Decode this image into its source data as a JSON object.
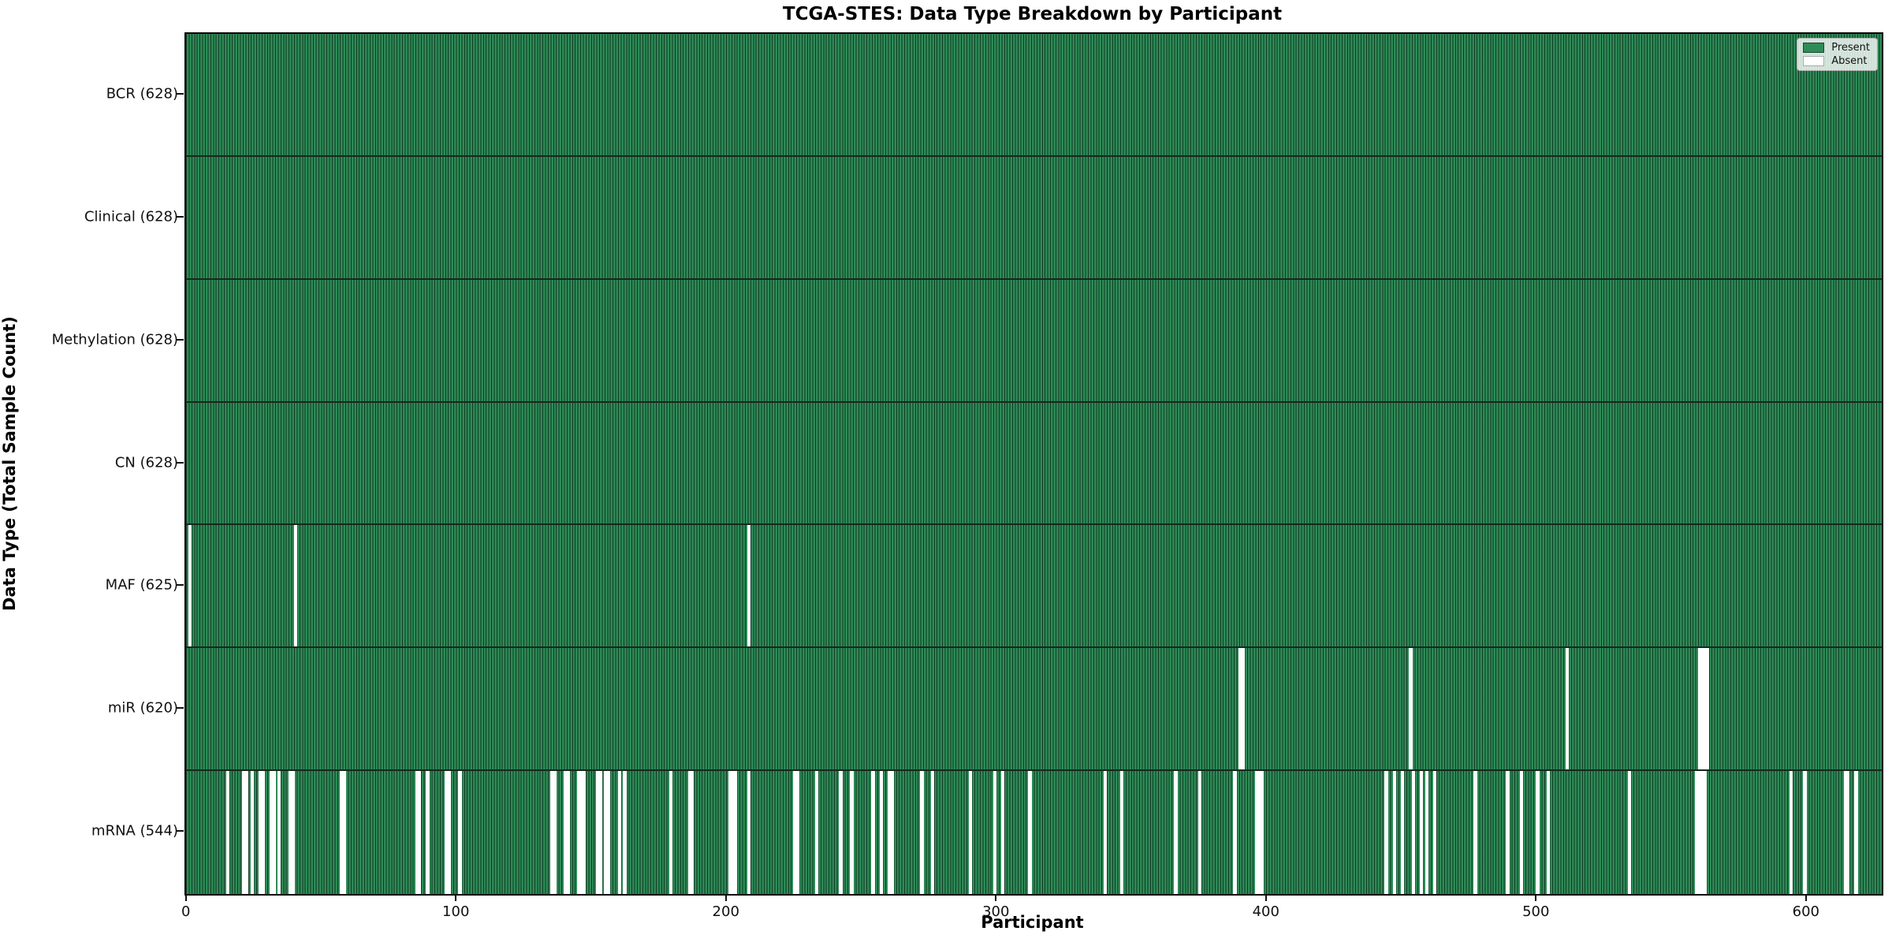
{
  "chart_data": {
    "type": "heatmap",
    "title": "TCGA-STES: Data Type Breakdown by Participant",
    "xlabel": "Participant",
    "ylabel": "Data Type (Total Sample Count)",
    "n_participants": 628,
    "x_ticks": [
      0,
      100,
      200,
      300,
      400,
      500,
      600
    ],
    "grid": false,
    "legend": {
      "position": "upper-right",
      "entries": [
        {
          "label": "Present",
          "color": "#2e8b57"
        },
        {
          "label": "Absent",
          "color": "#ffffff"
        }
      ]
    },
    "colors": {
      "present_fill": "#2e8b57",
      "absent_fill": "#ffffff",
      "bar_edge": "#1c4630",
      "row_divider": "#16281d",
      "spine": "#000000",
      "background": "#ffffff"
    },
    "rows": [
      {
        "label": "BCR",
        "count": 628,
        "absent": []
      },
      {
        "label": "Clinical",
        "count": 628,
        "absent": []
      },
      {
        "label": "Methylation",
        "count": 628,
        "absent": []
      },
      {
        "label": "CN",
        "count": 628,
        "absent": []
      },
      {
        "label": "MAF",
        "count": 625,
        "absent": [
          1,
          40,
          208
        ]
      },
      {
        "label": "miR",
        "count": 620,
        "absent": [
          390,
          391,
          453,
          511,
          560,
          561,
          562,
          563
        ]
      },
      {
        "label": "mRNA",
        "count": 544,
        "absent": [
          15,
          21,
          22,
          24,
          27,
          28,
          31,
          32,
          34,
          38,
          39,
          57,
          58,
          85,
          86,
          89,
          96,
          97,
          101,
          135,
          136,
          140,
          141,
          145,
          146,
          147,
          152,
          153,
          155,
          156,
          160,
          162,
          179,
          186,
          187,
          201,
          202,
          203,
          208,
          225,
          226,
          233,
          242,
          246,
          254,
          257,
          260,
          261,
          272,
          276,
          290,
          299,
          302,
          312,
          340,
          346,
          366,
          375,
          388,
          396,
          397,
          398,
          444,
          447,
          450,
          454,
          457,
          459,
          462,
          477,
          489,
          494,
          500,
          504,
          534,
          559,
          560,
          561,
          562,
          594,
          599,
          614,
          615,
          618
        ]
      }
    ]
  }
}
